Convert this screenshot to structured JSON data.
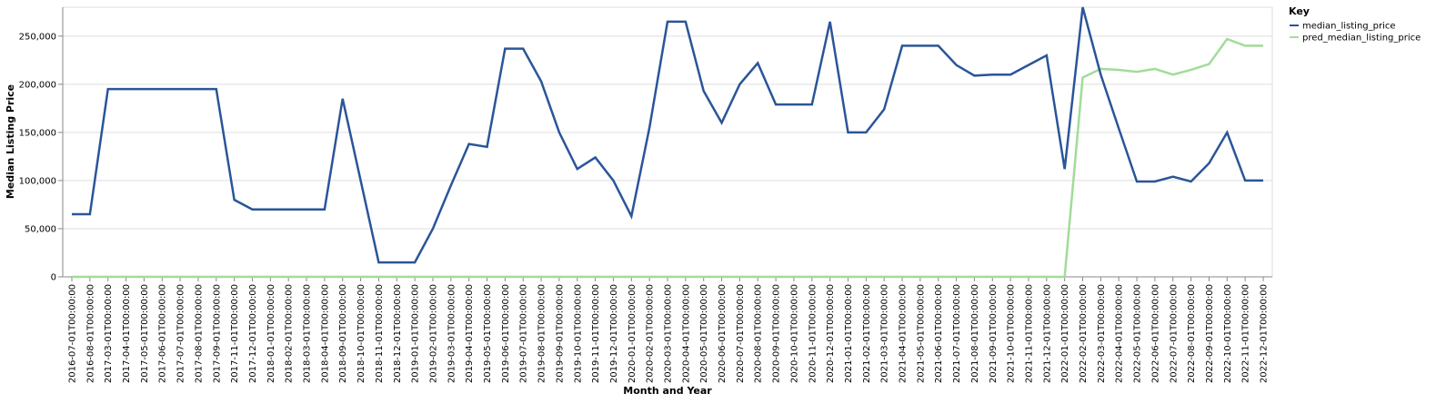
{
  "chart_data": {
    "type": "line",
    "xlabel": "Month and Year",
    "ylabel": "Median Listing Price",
    "ylim": [
      0,
      280000
    ],
    "yticks": [
      0,
      50000,
      100000,
      150000,
      200000,
      250000
    ],
    "grid": true,
    "legend": {
      "title": "Key",
      "placement": "top-right"
    },
    "x": [
      "2016-07-01T00:00:00",
      "2016-08-01T00:00:00",
      "2017-03-01T00:00:00",
      "2017-04-01T00:00:00",
      "2017-05-01T00:00:00",
      "2017-06-01T00:00:00",
      "2017-07-01T00:00:00",
      "2017-08-01T00:00:00",
      "2017-09-01T00:00:00",
      "2017-11-01T00:00:00",
      "2017-12-01T00:00:00",
      "2018-01-01T00:00:00",
      "2018-02-01T00:00:00",
      "2018-03-01T00:00:00",
      "2018-04-01T00:00:00",
      "2018-09-01T00:00:00",
      "2018-10-01T00:00:00",
      "2018-11-01T00:00:00",
      "2018-12-01T00:00:00",
      "2019-01-01T00:00:00",
      "2019-02-01T00:00:00",
      "2019-03-01T00:00:00",
      "2019-04-01T00:00:00",
      "2019-05-01T00:00:00",
      "2019-06-01T00:00:00",
      "2019-07-01T00:00:00",
      "2019-08-01T00:00:00",
      "2019-09-01T00:00:00",
      "2019-10-01T00:00:00",
      "2019-11-01T00:00:00",
      "2019-12-01T00:00:00",
      "2020-01-01T00:00:00",
      "2020-02-01T00:00:00",
      "2020-03-01T00:00:00",
      "2020-04-01T00:00:00",
      "2020-05-01T00:00:00",
      "2020-06-01T00:00:00",
      "2020-07-01T00:00:00",
      "2020-08-01T00:00:00",
      "2020-09-01T00:00:00",
      "2020-10-01T00:00:00",
      "2020-11-01T00:00:00",
      "2020-12-01T00:00:00",
      "2021-01-01T00:00:00",
      "2021-02-01T00:00:00",
      "2021-03-01T00:00:00",
      "2021-04-01T00:00:00",
      "2021-05-01T00:00:00",
      "2021-06-01T00:00:00",
      "2021-07-01T00:00:00",
      "2021-08-01T00:00:00",
      "2021-09-01T00:00:00",
      "2021-10-01T00:00:00",
      "2021-11-01T00:00:00",
      "2021-12-01T00:00:00",
      "2022-01-01T00:00:00",
      "2022-02-01T00:00:00",
      "2022-03-01T00:00:00",
      "2022-04-01T00:00:00",
      "2022-05-01T00:00:00",
      "2022-06-01T00:00:00",
      "2022-07-01T00:00:00",
      "2022-08-01T00:00:00",
      "2022-09-01T00:00:00",
      "2022-10-01T00:00:00",
      "2022-11-01T00:00:00",
      "2022-12-01T00:00:00"
    ],
    "series": [
      {
        "name": "median_listing_price",
        "color": "#2a5599",
        "values": [
          65000,
          65000,
          195000,
          195000,
          195000,
          195000,
          195000,
          195000,
          195000,
          80000,
          70000,
          70000,
          70000,
          70000,
          70000,
          185000,
          100000,
          15000,
          15000,
          15000,
          50000,
          95000,
          138000,
          135000,
          237000,
          237000,
          203000,
          150000,
          112000,
          124000,
          100000,
          63000,
          155000,
          265000,
          265000,
          193000,
          160000,
          200000,
          222000,
          179000,
          179000,
          179000,
          265000,
          150000,
          150000,
          174000,
          240000,
          240000,
          240000,
          220000,
          209000,
          210000,
          210000,
          220000,
          230000,
          112000,
          280000,
          210000,
          154000,
          99000,
          99000,
          104000,
          99000,
          118000,
          150000,
          100000,
          100000
        ]
      },
      {
        "name": "pred_median_listing_price",
        "color": "#a1dc98",
        "values": [
          0,
          0,
          0,
          0,
          0,
          0,
          0,
          0,
          0,
          0,
          0,
          0,
          0,
          0,
          0,
          0,
          0,
          0,
          0,
          0,
          0,
          0,
          0,
          0,
          0,
          0,
          0,
          0,
          0,
          0,
          0,
          0,
          0,
          0,
          0,
          0,
          0,
          0,
          0,
          0,
          0,
          0,
          0,
          0,
          0,
          0,
          0,
          0,
          0,
          0,
          0,
          0,
          0,
          0,
          0,
          0,
          207000,
          216000,
          215000,
          213000,
          216000,
          210000,
          215000,
          221000,
          247000,
          240000,
          240000
        ]
      }
    ]
  }
}
